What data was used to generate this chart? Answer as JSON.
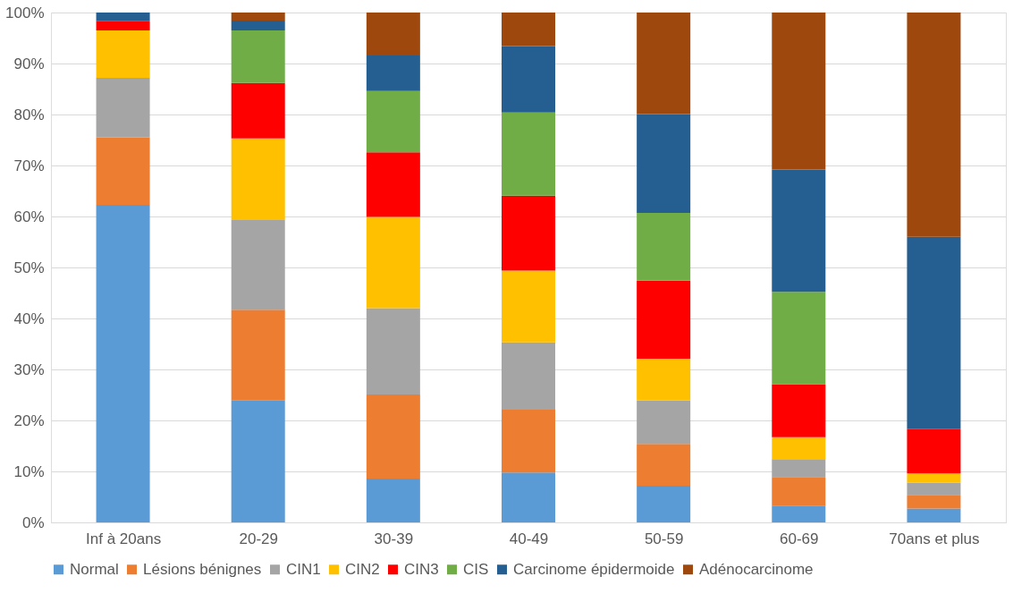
{
  "chart_data": {
    "type": "bar",
    "stacked": true,
    "categories": [
      "Inf à 20ans",
      "20-29",
      "30-39",
      "40-49",
      "50-59",
      "60-69",
      "70ans et plus"
    ],
    "series": [
      {
        "name": "Normal",
        "color": "#5b9bd5",
        "values": [
          62.3,
          24.0,
          8.6,
          9.8,
          7.2,
          3.3,
          2.7
        ]
      },
      {
        "name": "Lésions bénignes",
        "color": "#ed7d31",
        "values": [
          13.2,
          17.7,
          16.5,
          12.3,
          8.2,
          5.6,
          2.7
        ]
      },
      {
        "name": "CIN1",
        "color": "#a5a5a5",
        "values": [
          11.7,
          17.6,
          16.9,
          13.2,
          8.5,
          3.5,
          2.4
        ]
      },
      {
        "name": "CIN2",
        "color": "#ffc000",
        "values": [
          9.3,
          16.0,
          17.9,
          14.1,
          8.2,
          4.3,
          1.8
        ]
      },
      {
        "name": "CIN3",
        "color": "#ff0000",
        "values": [
          1.8,
          10.9,
          12.7,
          14.7,
          15.3,
          10.4,
          8.7
        ]
      },
      {
        "name": "CIS",
        "color": "#70ad47",
        "values": [
          0,
          10.3,
          12.0,
          16.3,
          13.3,
          18.1,
          0
        ]
      },
      {
        "name": "Carcinome épidermoide",
        "color": "#255e91",
        "values": [
          1.7,
          1.9,
          7.0,
          13.0,
          19.4,
          24.0,
          37.7
        ]
      },
      {
        "name": "Adénocarcinome",
        "color": "#9e480e",
        "values": [
          0,
          1.6,
          8.4,
          6.6,
          19.9,
          30.8,
          44.0
        ]
      }
    ],
    "ylim": [
      0,
      100
    ],
    "yticks": [
      {
        "value": 0,
        "label": "0%"
      },
      {
        "value": 10,
        "label": "10%"
      },
      {
        "value": 20,
        "label": "20%"
      },
      {
        "value": 30,
        "label": "30%"
      },
      {
        "value": 40,
        "label": "40%"
      },
      {
        "value": 50,
        "label": "50%"
      },
      {
        "value": 60,
        "label": "60%"
      },
      {
        "value": 70,
        "label": "70%"
      },
      {
        "value": 80,
        "label": "80%"
      },
      {
        "value": 90,
        "label": "90%"
      },
      {
        "value": 100,
        "label": "100%"
      }
    ],
    "grid": "y",
    "legend": "bottom"
  }
}
